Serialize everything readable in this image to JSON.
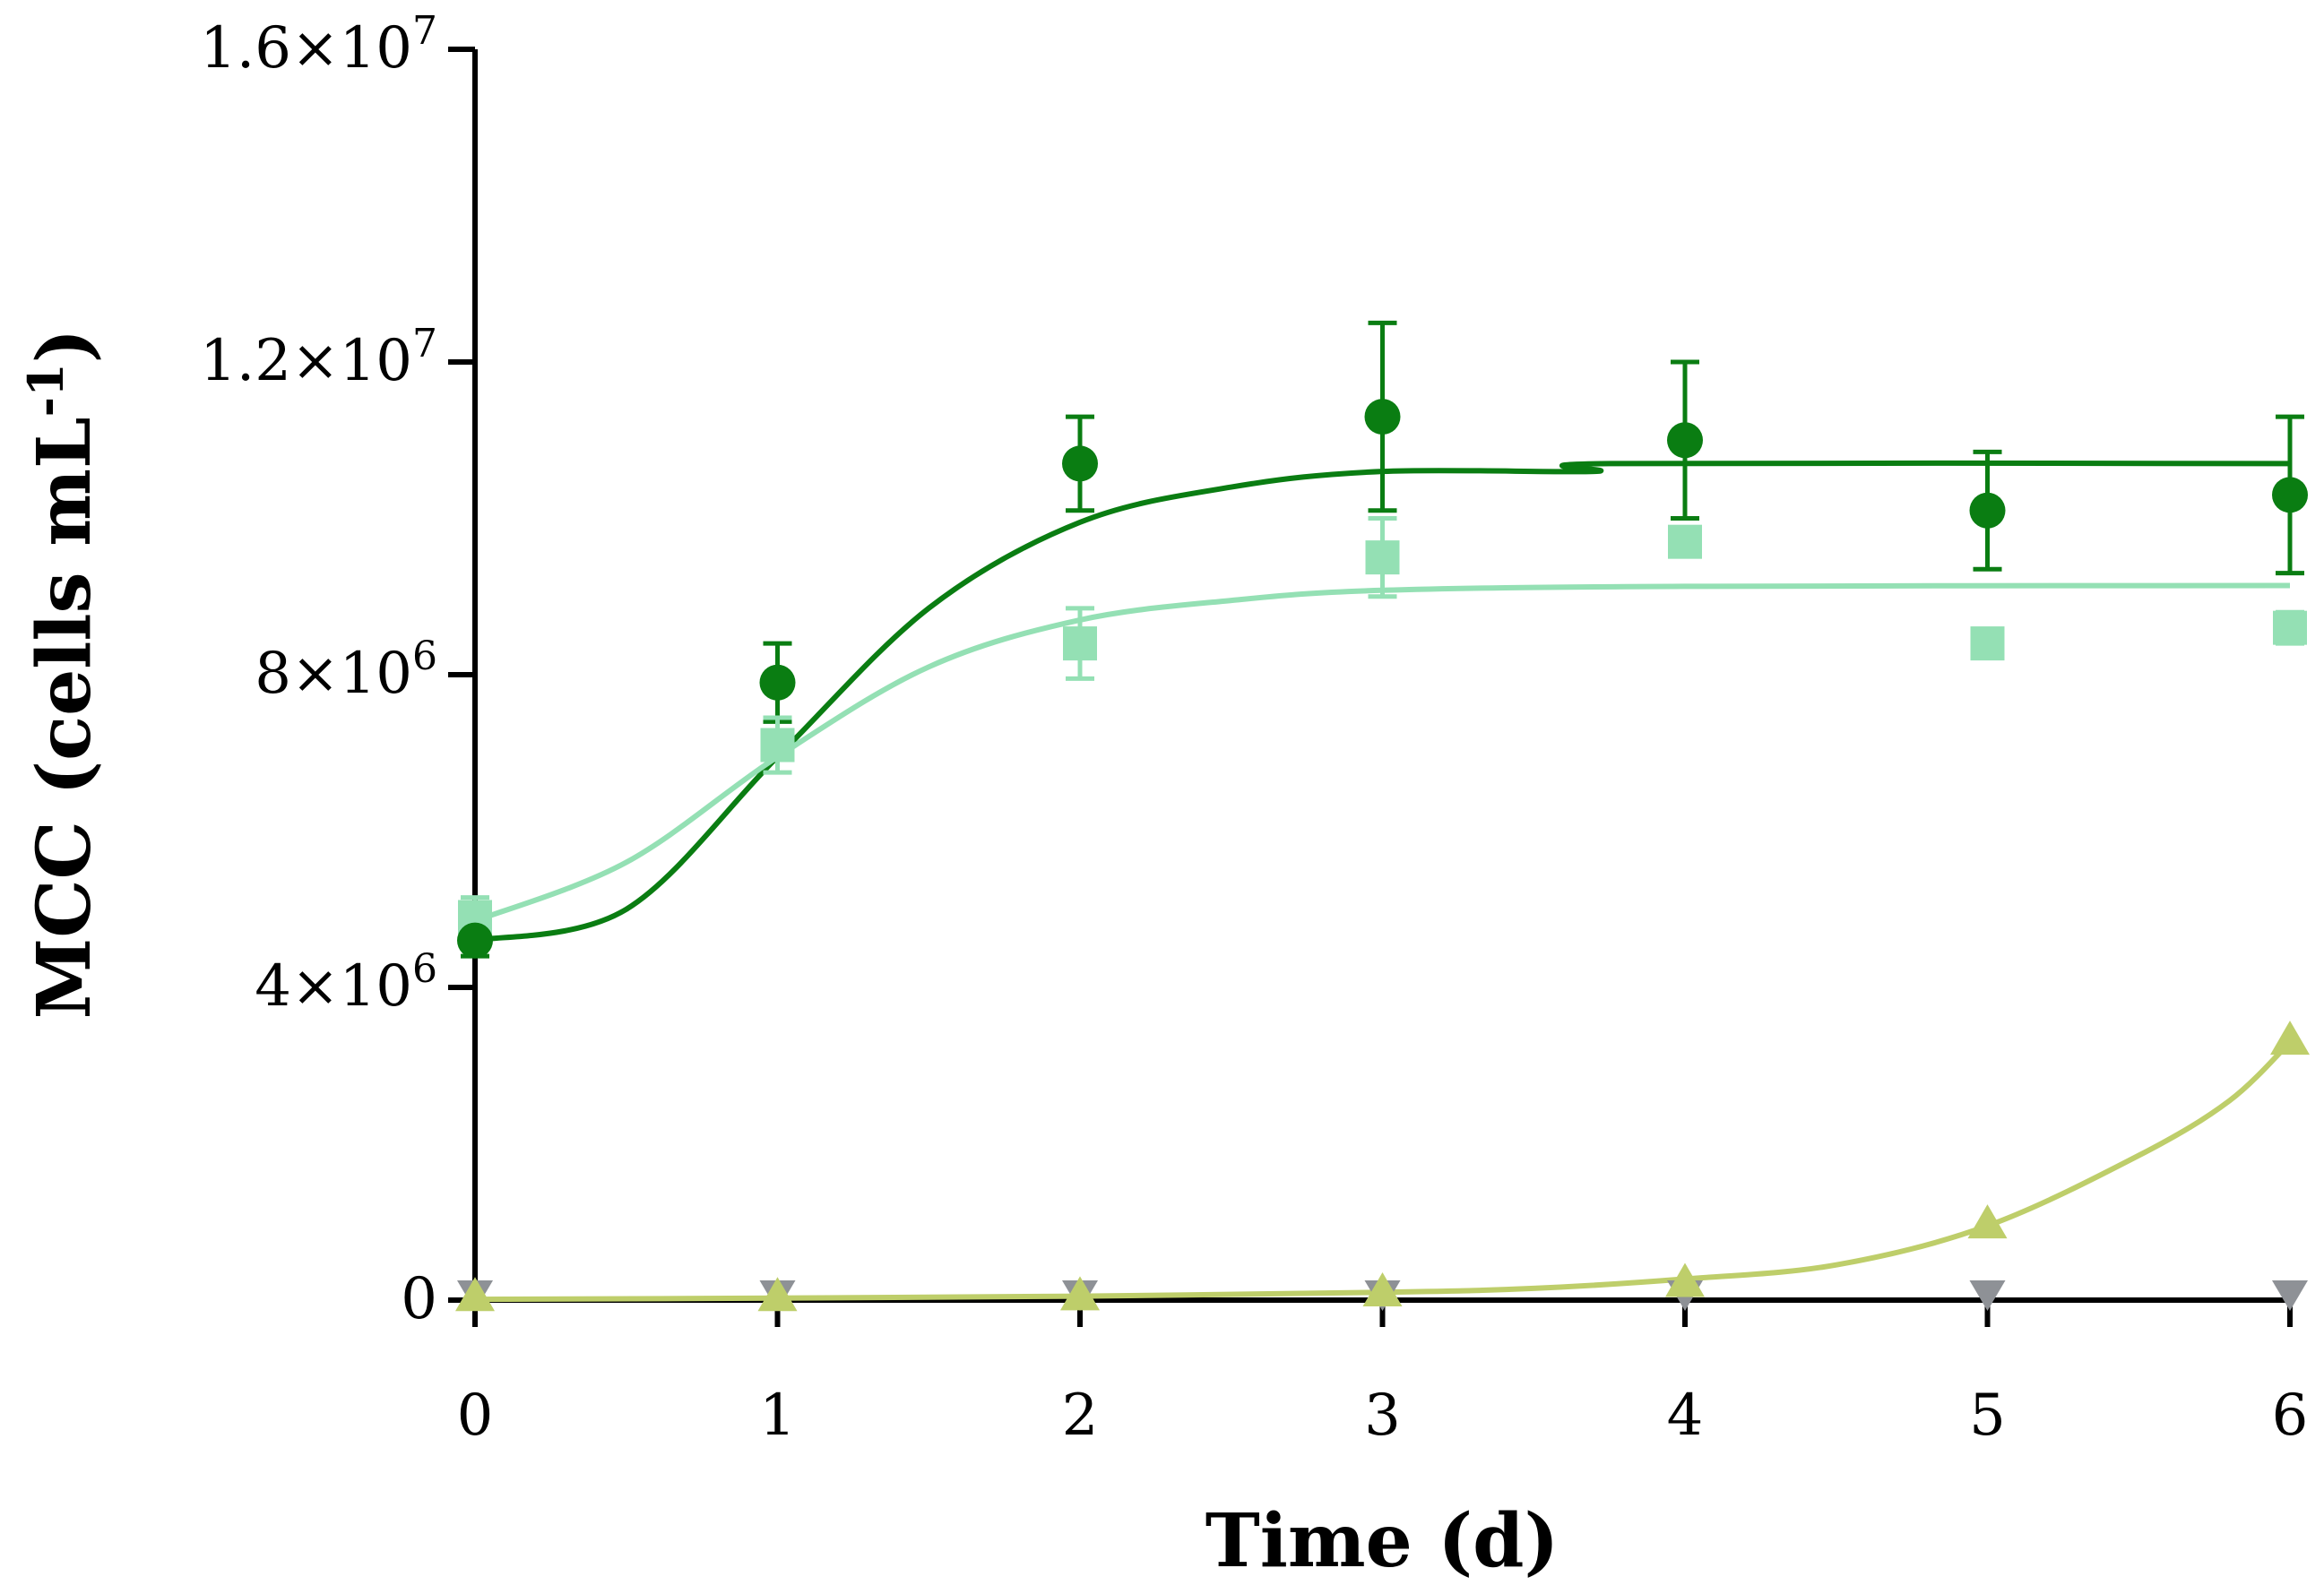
{
  "chart_data": {
    "type": "scatter",
    "title": "",
    "xlabel": "Time (d)",
    "ylabel": "MCC (cells mL",
    "ylabel_superscript": "-1",
    "ylabel_close": ")",
    "xlim": [
      0,
      6
    ],
    "ylim": [
      0,
      16000000
    ],
    "x_ticks": [
      0,
      1,
      2,
      3,
      4,
      5,
      6
    ],
    "x_tick_labels": [
      "0",
      "1",
      "2",
      "3",
      "4",
      "5",
      "6"
    ],
    "y_ticks": [
      0,
      4000000,
      8000000,
      12000000,
      16000000
    ],
    "y_tick_labels": [
      {
        "mantissa": "0",
        "exponent": ""
      },
      {
        "mantissa": "4×10",
        "exponent": "6"
      },
      {
        "mantissa": "8×10",
        "exponent": "6"
      },
      {
        "mantissa": "1.2×10",
        "exponent": "7"
      },
      {
        "mantissa": "1.6×10",
        "exponent": "7"
      }
    ],
    "grid": false,
    "legend": "none",
    "series": [
      {
        "name": "series-dark-green",
        "marker": "circle",
        "color": "#0a7d12",
        "x": [
          0,
          1,
          2,
          3,
          4,
          5,
          6
        ],
        "values": [
          4600000,
          7900000,
          10700000,
          11300000,
          11000000,
          10100000,
          10300000
        ],
        "errors": [
          200000,
          500000,
          600000,
          1200000,
          1000000,
          750000,
          1000000
        ],
        "fit": [
          [
            0,
            4600000
          ],
          [
            0.5,
            5000000
          ],
          [
            1,
            6950000
          ],
          [
            1.5,
            8850000
          ],
          [
            2,
            9950000
          ],
          [
            2.5,
            10400000
          ],
          [
            3,
            10600000
          ],
          [
            3.7,
            10600000
          ],
          [
            3.75,
            10700000
          ],
          [
            6,
            10700000
          ]
        ]
      },
      {
        "name": "series-light-green",
        "marker": "square",
        "color": "#94e0b4",
        "x": [
          0,
          1,
          2,
          3,
          4,
          5,
          6
        ],
        "values": [
          4900000,
          7100000,
          8400000,
          9500000,
          9700000,
          8400000,
          8600000
        ],
        "errors": [
          250000,
          350000,
          450000,
          500000,
          0,
          0,
          200000
        ],
        "fit": [
          [
            0,
            4850000
          ],
          [
            0.5,
            5600000
          ],
          [
            1,
            6950000
          ],
          [
            1.5,
            8100000
          ],
          [
            2,
            8700000
          ],
          [
            2.5,
            8950000
          ],
          [
            3,
            9080000
          ],
          [
            4,
            9130000
          ],
          [
            6,
            9140000
          ]
        ]
      },
      {
        "name": "series-olive",
        "marker": "triangle-up",
        "color": "#bece6a",
        "x": [
          0,
          1,
          2,
          3,
          4,
          5,
          6
        ],
        "values": [
          20000,
          20000,
          30000,
          80000,
          200000,
          950000,
          3300000
        ],
        "errors": [
          0,
          0,
          0,
          0,
          0,
          0,
          0
        ],
        "fit": [
          [
            0,
            10000
          ],
          [
            1,
            25000
          ],
          [
            2,
            50000
          ],
          [
            3,
            100000
          ],
          [
            3.5,
            150000
          ],
          [
            4,
            270000
          ],
          [
            4.5,
            450000
          ],
          [
            5,
            950000
          ],
          [
            5.5,
            1850000
          ],
          [
            5.8,
            2550000
          ],
          [
            6,
            3300000
          ]
        ]
      },
      {
        "name": "series-grey",
        "marker": "triangle-down",
        "color": "#8e9196",
        "x": [
          0,
          1,
          2,
          3,
          4,
          5,
          6
        ],
        "values": [
          0,
          0,
          0,
          0,
          0,
          0,
          0
        ],
        "errors": [
          0,
          0,
          0,
          0,
          0,
          0,
          0
        ],
        "fit": null
      }
    ]
  }
}
